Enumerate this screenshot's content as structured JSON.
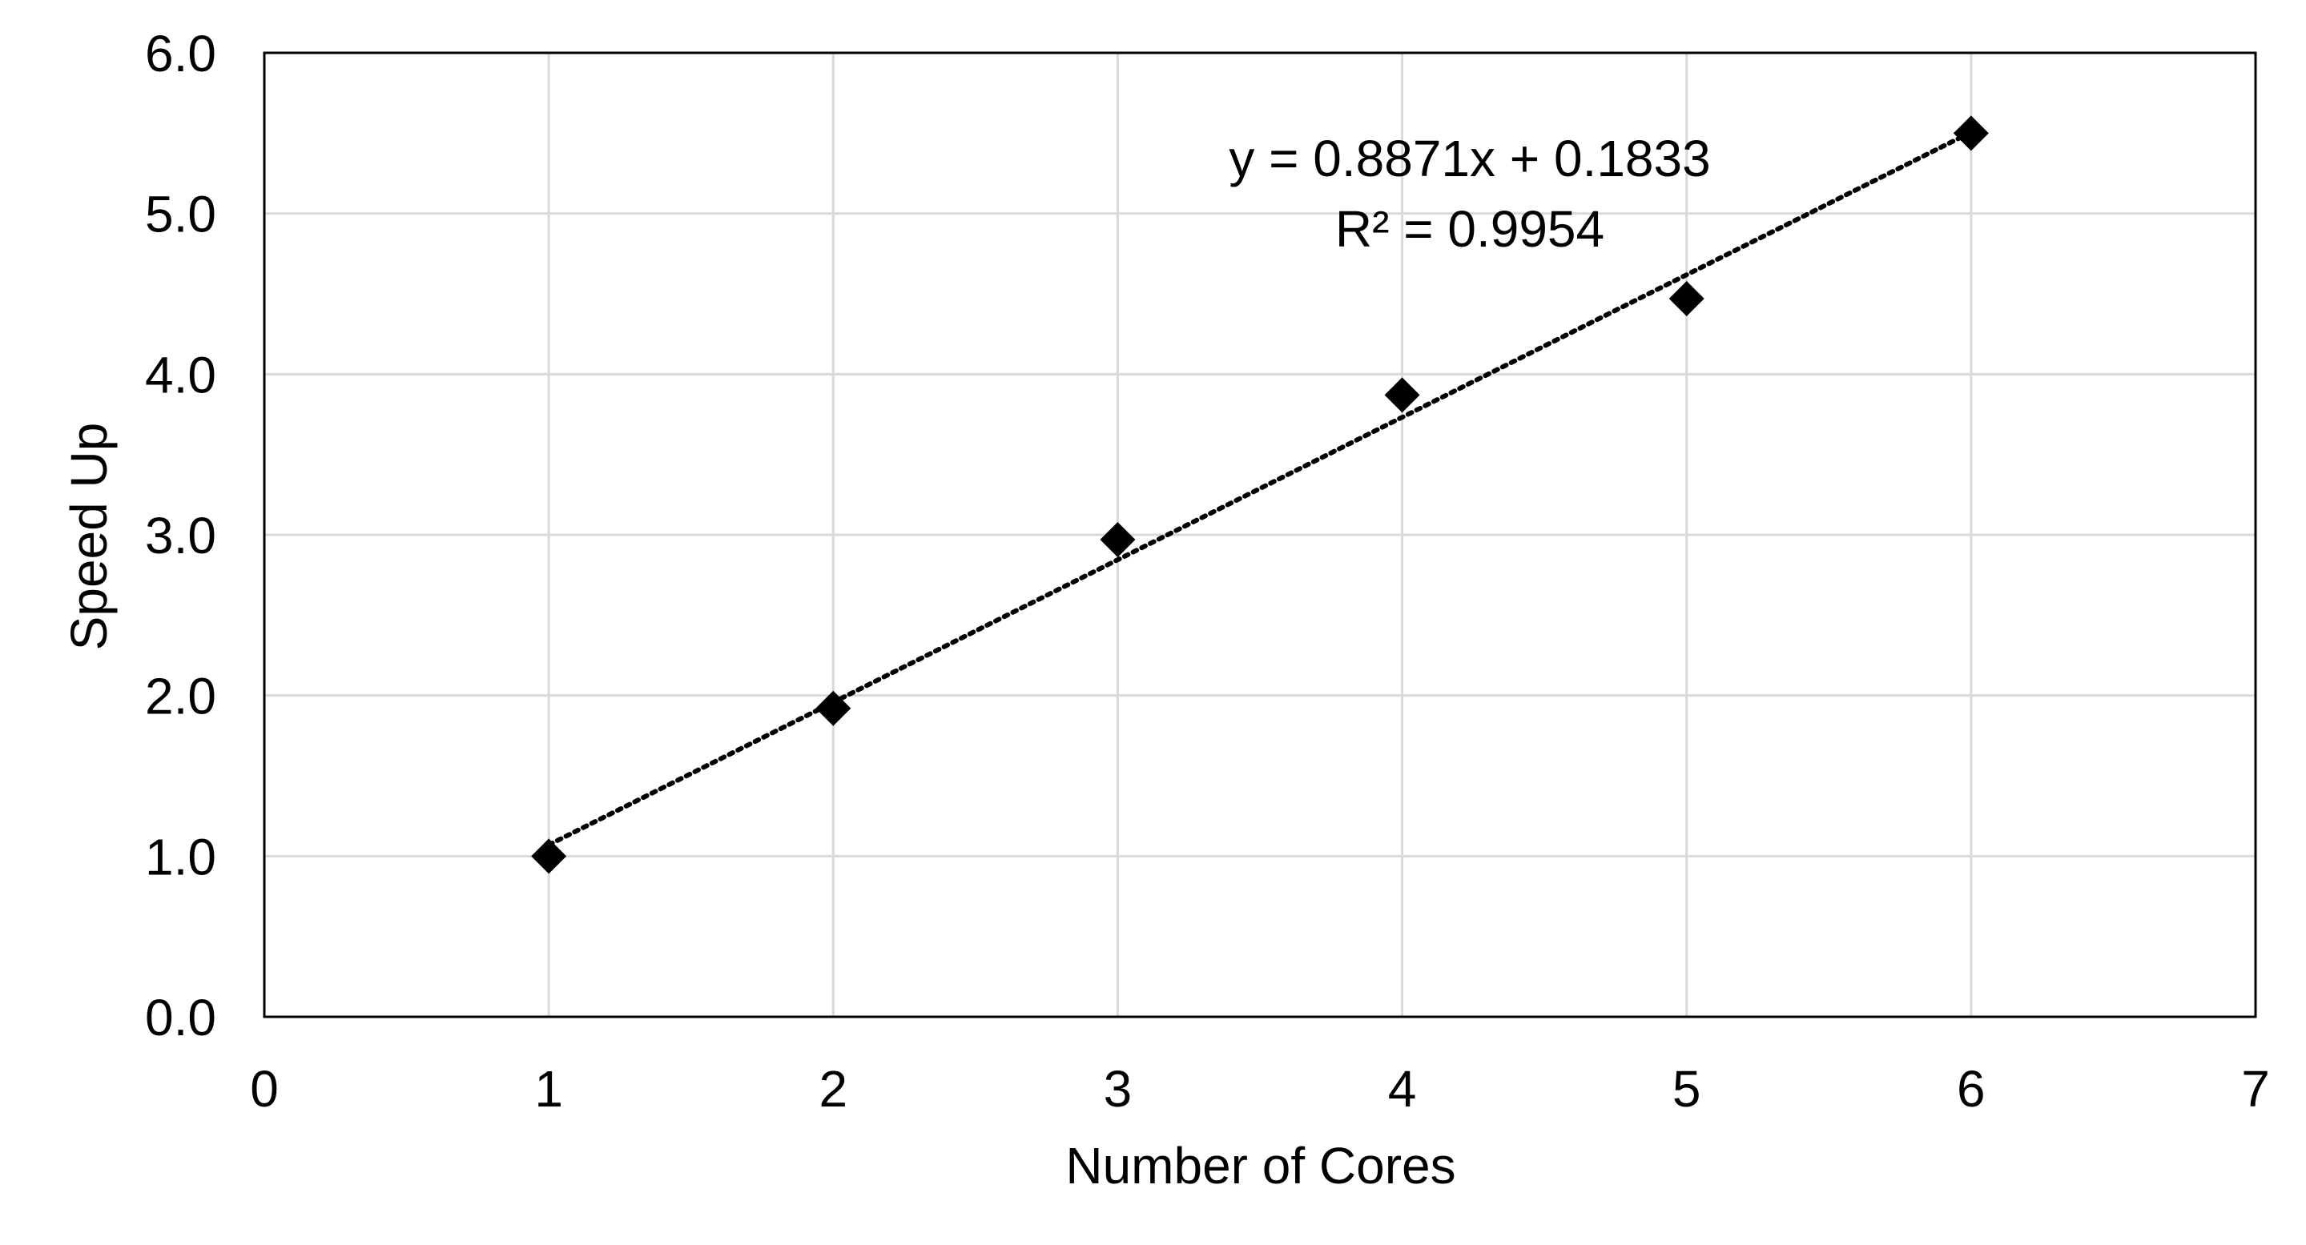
{
  "chart_data": {
    "type": "scatter",
    "xlabel": "Number of Cores",
    "ylabel": "Speed Up",
    "xlim": [
      0,
      7
    ],
    "ylim": [
      0,
      6
    ],
    "x_ticks": [
      "0",
      "1",
      "2",
      "3",
      "4",
      "5",
      "6",
      "7"
    ],
    "y_ticks": [
      "0.0",
      "1.0",
      "2.0",
      "3.0",
      "4.0",
      "5.0",
      "6.0"
    ],
    "grid": true,
    "legend": "none",
    "series": [
      {
        "marker": "diamond",
        "color": "#000000",
        "points": [
          {
            "x": 1,
            "y": 1.0
          },
          {
            "x": 2,
            "y": 1.92
          },
          {
            "x": 3,
            "y": 2.97
          },
          {
            "x": 4,
            "y": 3.87
          },
          {
            "x": 5,
            "y": 4.47
          },
          {
            "x": 6,
            "y": 5.5
          }
        ]
      }
    ],
    "trendline": {
      "type": "linear",
      "style": "dotted",
      "color": "#000000",
      "slope": 0.8871,
      "intercept": 0.1833,
      "x_range": [
        1,
        6
      ],
      "equation_label": "y = 0.8871x + 0.1833",
      "r2_label": "R² = 0.9954"
    }
  }
}
